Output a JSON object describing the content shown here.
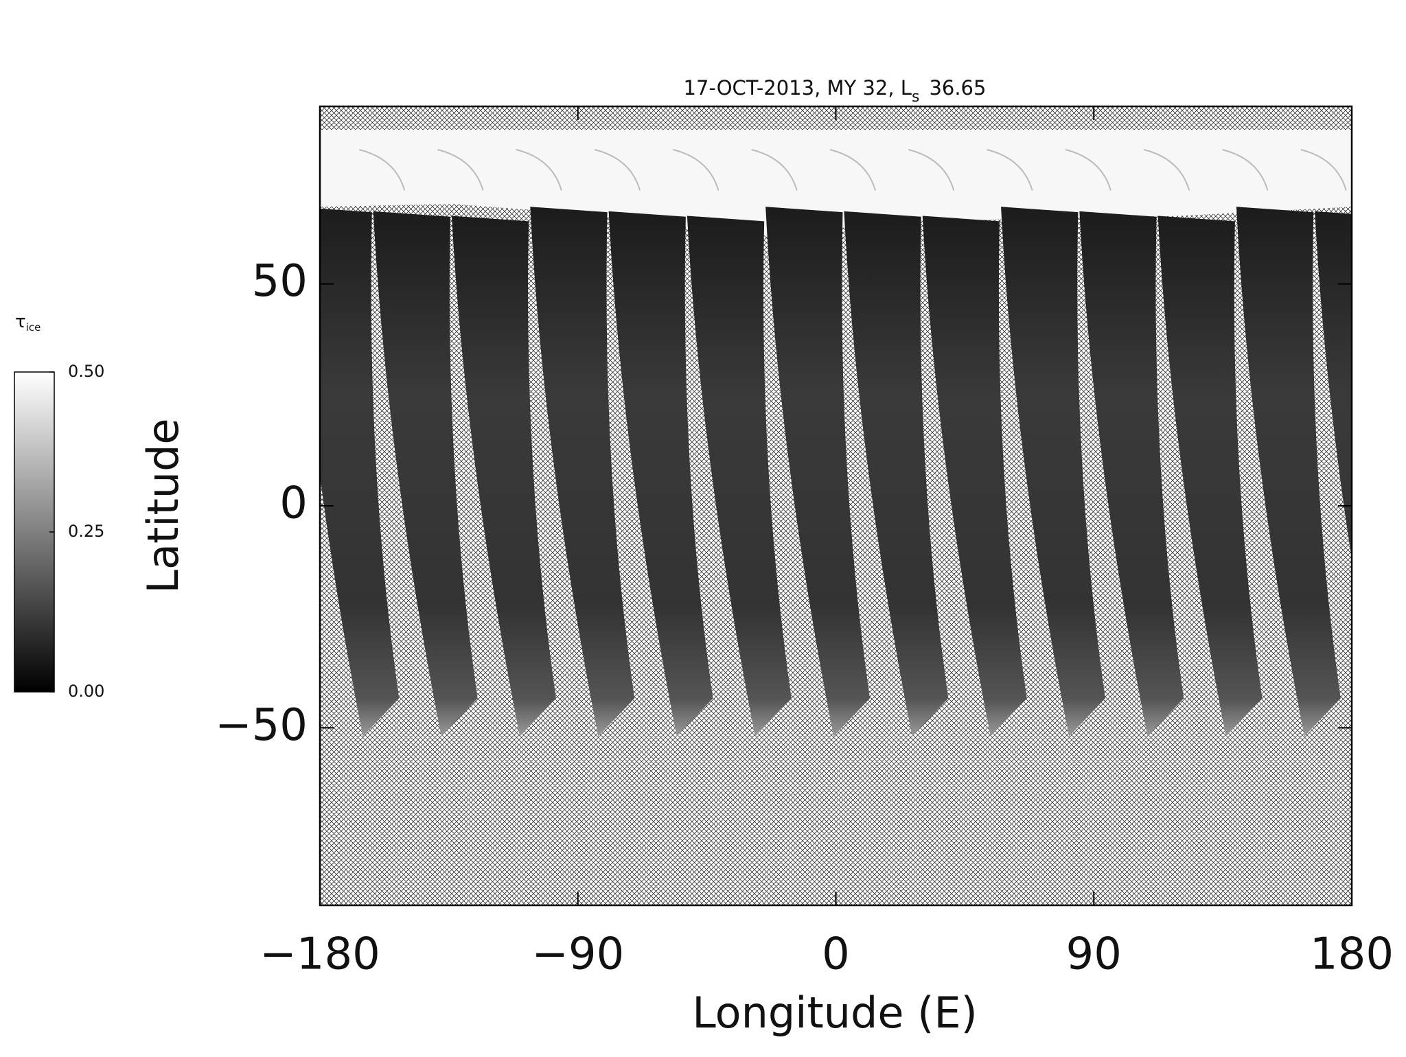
{
  "chart_data": {
    "type": "map",
    "title": {
      "prefix": "17-OCT-2013, MY 32,  L",
      "subscript": "s",
      "suffix": "36.65"
    },
    "x_label": "Longitude (E)",
    "y_label": "Latitude",
    "xlim": [
      -180,
      180
    ],
    "ylim": [
      -90,
      90
    ],
    "xticks": [
      {
        "value": -180,
        "label": "−180"
      },
      {
        "value": -90,
        "label": "−90"
      },
      0,
      90,
      180
    ],
    "yticks": [
      {
        "value": -50,
        "label": "−50"
      },
      0,
      50
    ],
    "colorbar": {
      "label": "τ",
      "label_subscript": "ice",
      "lim": [
        0,
        0.5
      ],
      "ticks": [
        {
          "value": 0,
          "label": "0.00"
        },
        {
          "value": 0.25,
          "label": "0.25"
        },
        {
          "value": 0.5,
          "label": "0.50"
        }
      ]
    }
  }
}
